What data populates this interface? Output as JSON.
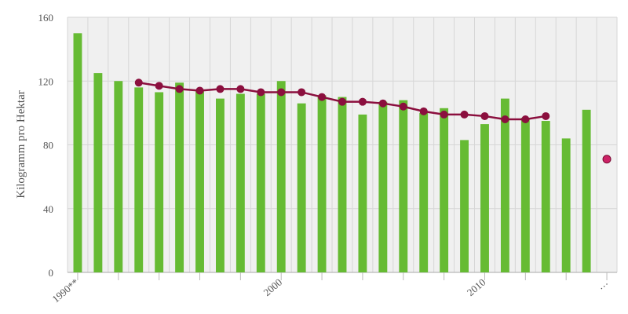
{
  "chart_data": {
    "type": "bar",
    "title": "",
    "xlabel": "",
    "ylabel": "Kilogramm pro Hektar",
    "ylim": [
      0,
      160
    ],
    "yticks": [
      0,
      40,
      80,
      120,
      160
    ],
    "x_tick_labels": [
      {
        "index": 0,
        "label": "1990**"
      },
      {
        "index": 10,
        "label": "2000"
      },
      {
        "index": 20,
        "label": "2010"
      },
      {
        "index": 26,
        "label": "…"
      }
    ],
    "categories": [
      "1990",
      "1991",
      "1992",
      "1993",
      "1994",
      "1995",
      "1996",
      "1997",
      "1998",
      "1999",
      "2000",
      "2001",
      "2002",
      "2003",
      "2004",
      "2005",
      "2006",
      "2007",
      "2008",
      "2009",
      "2010",
      "2011",
      "2012",
      "2013",
      "2014",
      "2015",
      "…"
    ],
    "grid": true,
    "legend": "none",
    "series": [
      {
        "type": "bar",
        "color": "#66bb33",
        "values": [
          150,
          125,
          120,
          116,
          113,
          119,
          114,
          109,
          112,
          112,
          120,
          106,
          111,
          110,
          99,
          107,
          108,
          100,
          103,
          83,
          93,
          109,
          97,
          95,
          84,
          102,
          null
        ]
      },
      {
        "type": "line",
        "color": "#8b0f3e",
        "values": [
          null,
          null,
          null,
          119,
          117,
          115,
          114,
          115,
          115,
          113,
          113,
          113,
          110,
          107,
          107,
          106,
          104,
          101,
          99,
          99,
          98,
          96,
          96,
          98,
          null,
          null,
          null
        ]
      },
      {
        "type": "point",
        "color": "#cc2266",
        "values": [
          null,
          null,
          null,
          null,
          null,
          null,
          null,
          null,
          null,
          null,
          null,
          null,
          null,
          null,
          null,
          null,
          null,
          null,
          null,
          null,
          null,
          null,
          null,
          null,
          null,
          null,
          71
        ]
      }
    ]
  }
}
